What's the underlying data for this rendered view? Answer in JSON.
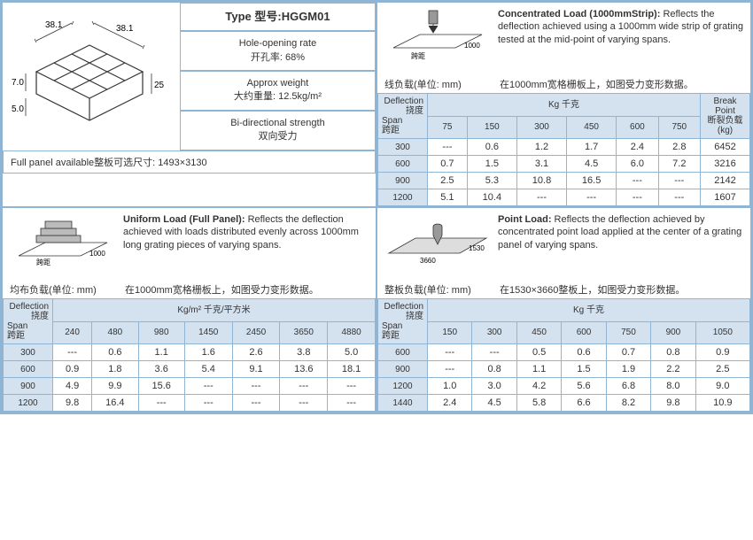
{
  "spec": {
    "type_label": "Type 型号:HGGM01",
    "hole_rate_en": "Hole-opening rate",
    "hole_rate_cn": "开孔率:  68%",
    "weight_en": "Approx weight",
    "weight_cn": "大约重量:  12.5kg/m²",
    "strength_en": "Bi-directional strength",
    "strength_cn": "双向受力",
    "full_panel": "Full panel available整板可选尺寸:  1493×3130",
    "dim_381a": "38.1",
    "dim_381b": "38.1",
    "dim_7": "7.0",
    "dim_5": "5.0",
    "dim_25": "25"
  },
  "q2": {
    "title": "Concentrated Load (1000mmStrip):",
    "desc": "Reflects the deflection achieved using a 1000mm wide strip of grating tested at the mid-point of varying spans.",
    "diag_span": "跨距",
    "diag_1000": "1000",
    "cn_label": "线负载(单位: mm)",
    "cn_desc": "在1000mm宽格栅板上，如图受力变形数据。",
    "hdr_def": "Deflection",
    "hdr_def_cn": "挠度",
    "hdr_span": "Span",
    "hdr_span_cn": "跨距",
    "hdr_kg": "Kg    千克",
    "hdr_break": "Break Point",
    "hdr_break_cn": "断裂负载 (kg)",
    "cols": [
      "75",
      "150",
      "300",
      "450",
      "600",
      "750"
    ],
    "rows": [
      {
        "span": "300",
        "vals": [
          "---",
          "0.6",
          "1.2",
          "1.7",
          "2.4",
          "2.8"
        ],
        "bp": "6452"
      },
      {
        "span": "600",
        "vals": [
          "0.7",
          "1.5",
          "3.1",
          "4.5",
          "6.0",
          "7.2"
        ],
        "bp": "3216"
      },
      {
        "span": "900",
        "vals": [
          "2.5",
          "5.3",
          "10.8",
          "16.5",
          "---",
          "---"
        ],
        "bp": "2142"
      },
      {
        "span": "1200",
        "vals": [
          "5.1",
          "10.4",
          "---",
          "---",
          "---",
          "---"
        ],
        "bp": "1607"
      }
    ]
  },
  "q3": {
    "title": "Uniform Load (Full Panel): ",
    "desc": "Reflects the deflection achieved with loads distributed evenly across 1000mm long grating pieces of varying spans.",
    "diag_span": "跨距",
    "diag_1000": "1000",
    "cn_label": "均布负载(单位: mm)",
    "cn_desc": "在1000mm宽格栅板上，如图受力变形数据。",
    "hdr_def": "Deflection",
    "hdr_def_cn": "挠度",
    "hdr_span": "Span",
    "hdr_span_cn": "跨距",
    "hdr_kg": "Kg/m²    千克/平方米",
    "cols": [
      "240",
      "480",
      "980",
      "1450",
      "2450",
      "3650",
      "4880"
    ],
    "rows": [
      {
        "span": "300",
        "vals": [
          "---",
          "0.6",
          "1.1",
          "1.6",
          "2.6",
          "3.8",
          "5.0"
        ]
      },
      {
        "span": "600",
        "vals": [
          "0.9",
          "1.8",
          "3.6",
          "5.4",
          "9.1",
          "13.6",
          "18.1"
        ]
      },
      {
        "span": "900",
        "vals": [
          "4.9",
          "9.9",
          "15.6",
          "---",
          "---",
          "---",
          "---"
        ]
      },
      {
        "span": "1200",
        "vals": [
          "9.8",
          "16.4",
          "---",
          "---",
          "---",
          "---",
          "---"
        ]
      }
    ]
  },
  "q4": {
    "title": "Point Load: ",
    "desc": "Reflects the deflection achieved by concentrated point load applied at the center of a grating panel of varying spans.",
    "diag_3660": "3660",
    "diag_1530": "1530",
    "cn_label": "整板负载(单位: mm)",
    "cn_desc": "在1530×3660整板上，如图受力变形数据。",
    "hdr_def": "Deflection",
    "hdr_def_cn": "挠度",
    "hdr_span": "Span",
    "hdr_span_cn": "跨距",
    "hdr_kg": "Kg    千克",
    "cols": [
      "150",
      "300",
      "450",
      "600",
      "750",
      "900",
      "1050"
    ],
    "rows": [
      {
        "span": "600",
        "vals": [
          "---",
          "---",
          "0.5",
          "0.6",
          "0.7",
          "0.8",
          "0.9"
        ]
      },
      {
        "span": "900",
        "vals": [
          "---",
          "0.8",
          "1.1",
          "1.5",
          "1.9",
          "2.2",
          "2.5"
        ]
      },
      {
        "span": "1200",
        "vals": [
          "1.0",
          "3.0",
          "4.2",
          "5.6",
          "6.8",
          "8.0",
          "9.0"
        ]
      },
      {
        "span": "1440",
        "vals": [
          "2.4",
          "4.5",
          "5.8",
          "6.6",
          "8.2",
          "9.8",
          "10.9"
        ]
      }
    ]
  }
}
